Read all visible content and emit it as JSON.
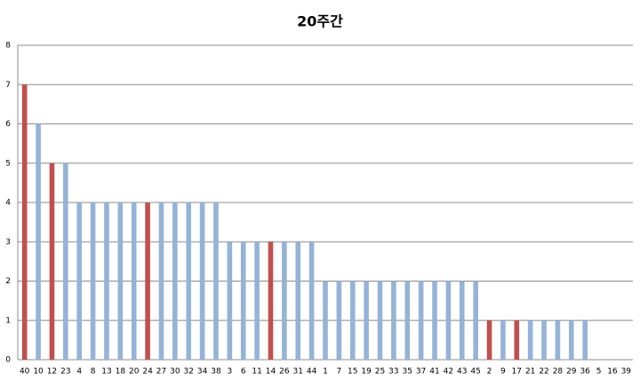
{
  "chart_data": {
    "type": "bar",
    "title": "20주간",
    "categories": [
      "40",
      "10",
      "12",
      "23",
      "4",
      "8",
      "13",
      "18",
      "20",
      "24",
      "27",
      "30",
      "32",
      "34",
      "38",
      "3",
      "6",
      "11",
      "14",
      "26",
      "31",
      "44",
      "1",
      "7",
      "15",
      "19",
      "25",
      "33",
      "35",
      "37",
      "41",
      "42",
      "43",
      "45",
      "2",
      "9",
      "17",
      "21",
      "22",
      "28",
      "29",
      "36",
      "5",
      "16",
      "39"
    ],
    "values": [
      7,
      6,
      5,
      5,
      4,
      4,
      4,
      4,
      4,
      4,
      4,
      4,
      4,
      4,
      4,
      3,
      3,
      3,
      3,
      3,
      3,
      3,
      2,
      2,
      2,
      2,
      2,
      2,
      2,
      2,
      2,
      2,
      2,
      2,
      1,
      1,
      1,
      1,
      1,
      1,
      1,
      1,
      0,
      0,
      0
    ],
    "colors": [
      "#c0504d",
      "#95b3d7",
      "#c0504d",
      "#95b3d7",
      "#95b3d7",
      "#95b3d7",
      "#95b3d7",
      "#95b3d7",
      "#95b3d7",
      "#c0504d",
      "#95b3d7",
      "#95b3d7",
      "#95b3d7",
      "#95b3d7",
      "#95b3d7",
      "#95b3d7",
      "#95b3d7",
      "#95b3d7",
      "#c0504d",
      "#95b3d7",
      "#95b3d7",
      "#95b3d7",
      "#95b3d7",
      "#95b3d7",
      "#95b3d7",
      "#95b3d7",
      "#95b3d7",
      "#95b3d7",
      "#95b3d7",
      "#95b3d7",
      "#95b3d7",
      "#95b3d7",
      "#95b3d7",
      "#95b3d7",
      "#c0504d",
      "#95b3d7",
      "#c0504d",
      "#95b3d7",
      "#95b3d7",
      "#95b3d7",
      "#95b3d7",
      "#95b3d7",
      "#95b3d7",
      "#95b3d7",
      "#95b3d7"
    ],
    "ylim": [
      0,
      8
    ],
    "yticks": [
      0,
      1,
      2,
      3,
      4,
      5,
      6,
      7,
      8
    ],
    "grid": true
  }
}
